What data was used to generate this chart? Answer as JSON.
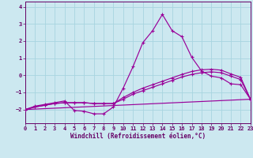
{
  "background_color": "#cce8f0",
  "grid_color": "#a8d4e0",
  "line_color": "#990099",
  "spine_color": "#660066",
  "tick_color": "#660066",
  "xlabel": "Windchill (Refroidissement éolien,°C)",
  "xlim": [
    0,
    23
  ],
  "ylim": [
    -2.8,
    4.3
  ],
  "xticks": [
    0,
    1,
    2,
    3,
    4,
    5,
    6,
    7,
    8,
    9,
    10,
    11,
    12,
    13,
    14,
    15,
    16,
    17,
    18,
    19,
    20,
    21,
    22,
    23
  ],
  "yticks": [
    -2,
    -1,
    0,
    1,
    2,
    3,
    4
  ],
  "line1_y": [
    -2.0,
    -1.8,
    -1.7,
    -1.6,
    -1.5,
    -2.05,
    -2.1,
    -2.25,
    -2.25,
    -1.85,
    -0.75,
    0.5,
    1.9,
    2.6,
    3.55,
    2.6,
    2.25,
    1.05,
    0.25,
    -0.05,
    -0.15,
    -0.5,
    -0.55,
    -1.4
  ],
  "line2_y": [
    -2.0,
    -1.85,
    -1.75,
    -1.65,
    -1.6,
    -1.6,
    -1.6,
    -1.65,
    -1.65,
    -1.65,
    -1.4,
    -1.1,
    -0.9,
    -0.7,
    -0.5,
    -0.3,
    -0.1,
    0.05,
    0.15,
    0.2,
    0.15,
    -0.05,
    -0.25,
    -1.4
  ],
  "line3_y": [
    -2.0,
    -1.85,
    -1.75,
    -1.65,
    -1.6,
    -1.6,
    -1.6,
    -1.65,
    -1.65,
    -1.65,
    -1.3,
    -1.0,
    -0.75,
    -0.55,
    -0.35,
    -0.15,
    0.05,
    0.22,
    0.32,
    0.35,
    0.3,
    0.08,
    -0.12,
    -1.4
  ],
  "line4_y": [
    -2.0,
    -1.4
  ]
}
